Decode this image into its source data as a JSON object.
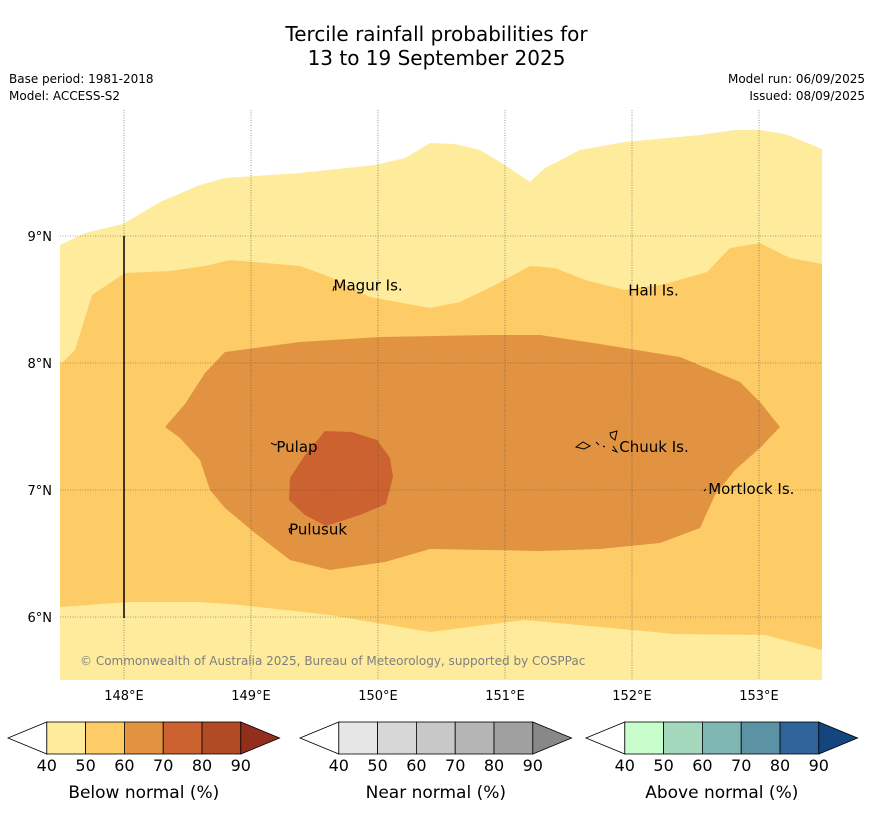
{
  "title_line1": "Tercile rainfall probabilities for",
  "title_line2": "13 to 19 September 2025",
  "meta_left": {
    "base_period": "Base period: 1981-2018",
    "model": "Model: ACCESS-S2"
  },
  "meta_right": {
    "model_run": "Model run: 06/09/2025",
    "issued": "Issued: 08/09/2025"
  },
  "map": {
    "lon_range": [
      147.5,
      153.5
    ],
    "lat_range": [
      5.5,
      10.0
    ],
    "lon_ticks": [
      148,
      149,
      150,
      151,
      152,
      153
    ],
    "lon_labels": [
      "148°E",
      "149°E",
      "150°E",
      "151°E",
      "152°E",
      "153°E"
    ],
    "lat_ticks": [
      6,
      7,
      8,
      9
    ],
    "lat_labels": [
      "6°N",
      "7°N",
      "8°N",
      "9°N"
    ],
    "places": [
      {
        "name": "Magur Is.",
        "lon": 149.65,
        "lat": 8.57
      },
      {
        "name": "Hall Is.",
        "lon": 151.97,
        "lat": 8.53
      },
      {
        "name": "Pulap",
        "lon": 149.2,
        "lat": 7.3
      },
      {
        "name": "Chuuk Is.",
        "lon": 151.9,
        "lat": 7.3
      },
      {
        "name": "Mortlock Is.",
        "lon": 152.6,
        "lat": 6.97
      },
      {
        "name": "Pulusuk",
        "lon": 149.3,
        "lat": 6.65
      }
    ],
    "copyright": "© Commonwealth of Australia 2025, Bureau of Meteorology, supported by COSPPac"
  },
  "legends": [
    {
      "title": "Below normal (%)",
      "colors": [
        "#ffffff",
        "#feeb9c",
        "#fecc67",
        "#e19342",
        "#cb6230",
        "#b14b26",
        "#922f1c"
      ]
    },
    {
      "title": "Near normal (%)",
      "colors": [
        "#ffffff",
        "#e6e6e6",
        "#d7d7d7",
        "#c8c8c8",
        "#b5b5b5",
        "#a0a0a0",
        "#888888"
      ]
    },
    {
      "title": "Above normal (%)",
      "colors": [
        "#ffffff",
        "#c8fecc",
        "#a3d8bd",
        "#7eb6b1",
        "#5b93a4",
        "#2f6399",
        "#13467e"
      ]
    }
  ],
  "legend_ticks": [
    "40",
    "50",
    "60",
    "70",
    "80",
    "90"
  ]
}
